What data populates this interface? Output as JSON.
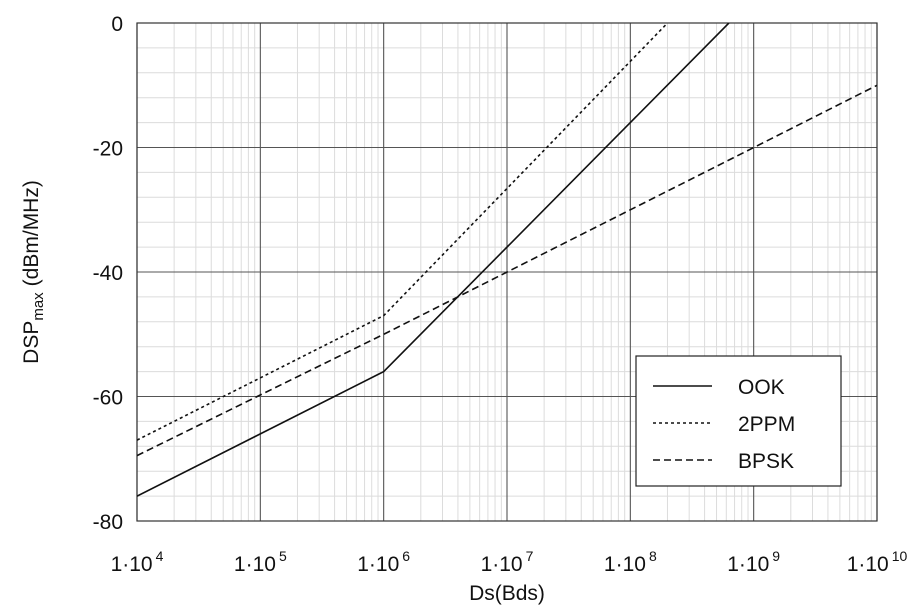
{
  "chart_data": {
    "type": "line",
    "xlabel": "Ds(Bds)",
    "ylabel_main": "DSP",
    "ylabel_sub": "max",
    "ylabel_unit": "(dBm/MHz)",
    "x_scale": "log",
    "xlim": [
      10000,
      10000000000
    ],
    "ylim": [
      -80,
      0
    ],
    "x_ticks": [
      {
        "value": 10000,
        "base": "1·10",
        "exp": "4"
      },
      {
        "value": 100000,
        "base": "1·10",
        "exp": "5"
      },
      {
        "value": 1000000,
        "base": "1·10",
        "exp": "6"
      },
      {
        "value": 10000000,
        "base": "1·10",
        "exp": "7"
      },
      {
        "value": 100000000,
        "base": "1·10",
        "exp": "8"
      },
      {
        "value": 1000000000,
        "base": "1·10",
        "exp": "9"
      },
      {
        "value": 10000000000,
        "base": "1·10",
        "exp": "10"
      }
    ],
    "y_ticks": [
      {
        "value": 0,
        "label": "0"
      },
      {
        "value": -20,
        "label": "-20"
      },
      {
        "value": -40,
        "label": "-40"
      },
      {
        "value": -60,
        "label": "-60"
      },
      {
        "value": -80,
        "label": "-80"
      }
    ],
    "grid": true,
    "legend_position": "bottom-right",
    "series": [
      {
        "name": "OOK",
        "style": "solid",
        "x": [
          10000,
          1000000,
          630000000
        ],
        "y": [
          -76,
          -56,
          0
        ]
      },
      {
        "name": "2PPM",
        "style": "dotted",
        "x": [
          10000,
          1000000,
          200000000
        ],
        "y": [
          -67,
          -47,
          0
        ]
      },
      {
        "name": "BPSK",
        "style": "dashed",
        "x": [
          10000,
          1000000,
          10000000000
        ],
        "y": [
          -69.5,
          -50,
          -10
        ]
      }
    ]
  }
}
